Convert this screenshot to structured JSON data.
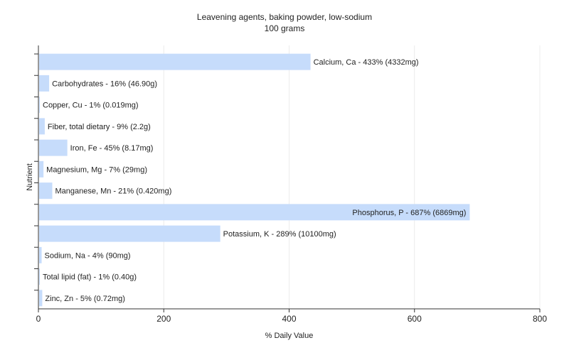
{
  "chart_data": {
    "type": "bar",
    "orientation": "horizontal",
    "title": "Leavening agents, baking powder, low-sodium",
    "subtitle": "100 grams",
    "xlabel": "% Daily Value",
    "ylabel": "Nutrient",
    "xlim": [
      0,
      800
    ],
    "xticks": [
      0,
      200,
      400,
      600,
      800
    ],
    "grid": true,
    "legend": "none",
    "bar_color": "#c6dcfb",
    "categories": [
      "Calcium, Ca",
      "Carbohydrates",
      "Copper, Cu",
      "Fiber, total dietary",
      "Iron, Fe",
      "Magnesium, Mg",
      "Manganese, Mn",
      "Phosphorus, P",
      "Potassium, K",
      "Sodium, Na",
      "Total lipid (fat)",
      "Zinc, Zn"
    ],
    "values": [
      433,
      16,
      1,
      9,
      45,
      7,
      21,
      687,
      289,
      4,
      1,
      5
    ],
    "amounts": [
      "4332mg",
      "46.90g",
      "0.019mg",
      "2.2g",
      "8.17mg",
      "29mg",
      "0.420mg",
      "6869mg",
      "10100mg",
      "90mg",
      "0.40g",
      "0.72mg"
    ],
    "labels": [
      "Calcium, Ca - 433% (4332mg)",
      "Carbohydrates - 16% (46.90g)",
      "Copper, Cu - 1% (0.019mg)",
      "Fiber, total dietary - 9% (2.2g)",
      "Iron, Fe - 45% (8.17mg)",
      "Magnesium, Mg - 7% (29mg)",
      "Manganese, Mn - 21% (0.420mg)",
      "Phosphorus, P - 687% (6869mg)",
      "Potassium, K - 289% (10100mg)",
      "Sodium, Na - 4% (90mg)",
      "Total lipid (fat) - 1% (0.40g)",
      "Zinc, Zn - 5% (0.72mg)"
    ]
  }
}
